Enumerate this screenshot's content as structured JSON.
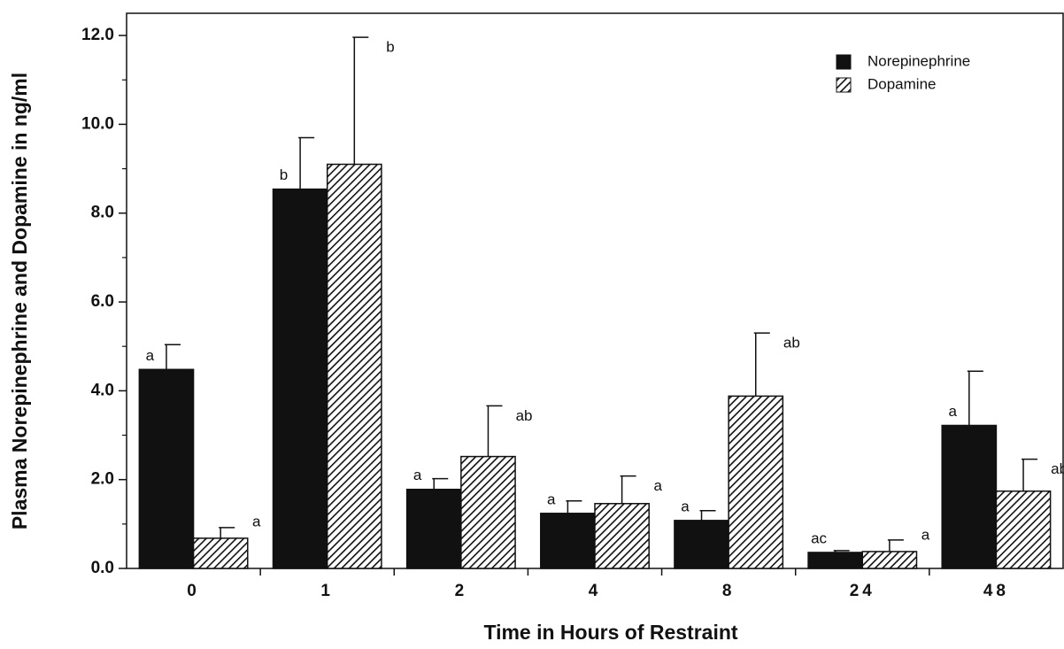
{
  "chart_data": {
    "type": "bar",
    "ylabel": "Plasma Norepinephrine and Dopamine in ng/ml",
    "xlabel": "Time in Hours of Restraint",
    "categories": [
      "0",
      "1",
      "2",
      "4",
      "8",
      "24",
      "48"
    ],
    "series": [
      {
        "name": "Norepinephrine",
        "color": "#111111",
        "pattern": "solid",
        "values": [
          4.48,
          8.54,
          1.78,
          1.24,
          1.08,
          0.36,
          3.22
        ],
        "errors": [
          0.56,
          1.16,
          0.24,
          0.28,
          0.22,
          0.04,
          1.22
        ],
        "labels": [
          "a",
          "b",
          "a",
          "a",
          "a",
          "ac",
          "a"
        ]
      },
      {
        "name": "Dopamine",
        "color": "#111111",
        "pattern": "hatch",
        "values": [
          0.68,
          9.1,
          2.52,
          1.46,
          3.88,
          0.38,
          1.74
        ],
        "errors": [
          0.24,
          2.86,
          1.14,
          0.62,
          1.42,
          0.26,
          0.72
        ],
        "labels": [
          "a",
          "b",
          "ab",
          "a",
          "ab",
          "a",
          "ab"
        ]
      }
    ],
    "ylim": [
      0,
      12.5
    ],
    "yticks": [
      {
        "value": 0,
        "label": "0.0"
      },
      {
        "value": 2,
        "label": "2.0"
      },
      {
        "value": 4,
        "label": "4.0"
      },
      {
        "value": 6,
        "label": "6.0"
      },
      {
        "value": 8,
        "label": "8.0"
      },
      {
        "value": 10,
        "label": "10.0"
      },
      {
        "value": 12,
        "label": "12.0"
      }
    ],
    "minor_yticks": [
      1,
      3,
      5,
      7,
      9,
      11
    ],
    "legend": "upper right"
  }
}
